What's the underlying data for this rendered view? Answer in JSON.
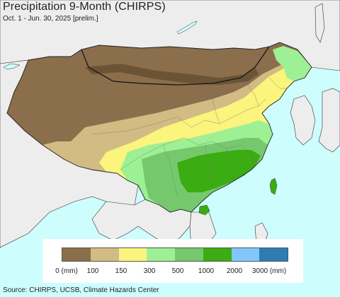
{
  "header": {
    "title": "Precipitation 9-Month (CHIRPS)",
    "subtitle": "Oct. 1 - Jun. 30, 2025 [prelim.]"
  },
  "legend": {
    "swatches": [
      {
        "color": "#8b6e4b"
      },
      {
        "color": "#d2bc83"
      },
      {
        "color": "#fbf47d"
      },
      {
        "color": "#9ef095"
      },
      {
        "color": "#76c86d"
      },
      {
        "color": "#3bac11"
      },
      {
        "color": "#82c7fb"
      },
      {
        "color": "#2e7cb4"
      }
    ],
    "labels": [
      "0 (mm)",
      "100",
      "150",
      "300",
      "500",
      "1000",
      "2000",
      "3000 (mm)"
    ]
  },
  "map": {
    "sea_color": "#cdfdfd",
    "land_outside_color": "#ededed"
  },
  "footer": {
    "source": "Source: CHIRPS, UCSB, Climate Hazards Center"
  }
}
